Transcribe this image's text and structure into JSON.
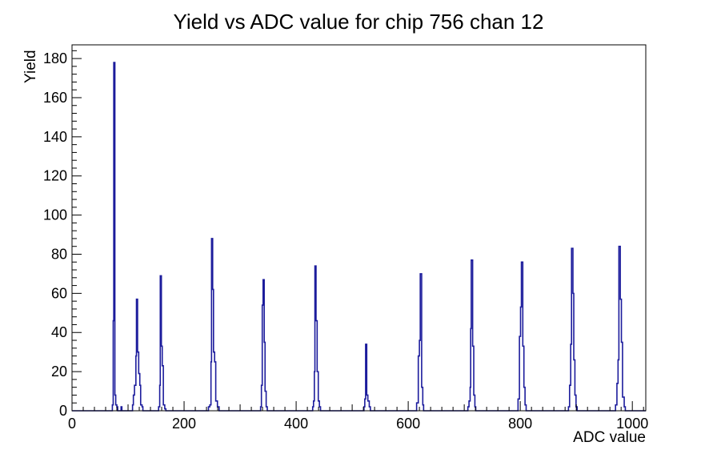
{
  "page": {
    "background": "#ffffff"
  },
  "chart_data": {
    "type": "bar",
    "subtype": "histogram-step-outline",
    "title": "Yield vs ADC value for chip 756 chan 12",
    "xlabel": "ADC value",
    "ylabel": "Yield",
    "xlim": [
      0,
      1024
    ],
    "ylim": [
      0,
      187
    ],
    "grid": false,
    "legend": false,
    "x_major_ticks": [
      0,
      200,
      400,
      600,
      800,
      1000
    ],
    "x_medium_step": 100,
    "x_minor_step": 20,
    "y_major_ticks": [
      0,
      20,
      40,
      60,
      80,
      100,
      120,
      140,
      160,
      180
    ],
    "y_minor_step": 4,
    "line_color": "#1c1c9c",
    "axis_color": "#000000",
    "peaks_summary": [
      {
        "center_adc": 75,
        "max_yield": 178
      },
      {
        "center_adc": 116,
        "max_yield": 57
      },
      {
        "center_adc": 158,
        "max_yield": 69
      },
      {
        "center_adc": 250,
        "max_yield": 88
      },
      {
        "center_adc": 342,
        "max_yield": 67
      },
      {
        "center_adc": 435,
        "max_yield": 74
      },
      {
        "center_adc": 525,
        "max_yield": 34
      },
      {
        "center_adc": 622,
        "max_yield": 70
      },
      {
        "center_adc": 713,
        "max_yield": 77
      },
      {
        "center_adc": 803,
        "max_yield": 76
      },
      {
        "center_adc": 892,
        "max_yield": 83
      },
      {
        "center_adc": 977,
        "max_yield": 84
      }
    ],
    "clusters": [
      {
        "points": [
          [
            70.5,
            0
          ],
          [
            72,
            3
          ],
          [
            73.5,
            46
          ],
          [
            74.5,
            178
          ],
          [
            76.5,
            8
          ],
          [
            78,
            3
          ],
          [
            80,
            2
          ],
          [
            81.5,
            0
          ]
        ]
      },
      {
        "points": [
          [
            86,
            0
          ],
          [
            87.5,
            2
          ],
          [
            89,
            0
          ]
        ]
      },
      {
        "points": [
          [
            106.5,
            0
          ],
          [
            108,
            3
          ],
          [
            109.5,
            8
          ],
          [
            111.5,
            13
          ],
          [
            114,
            28
          ],
          [
            115,
            57
          ],
          [
            117,
            30
          ],
          [
            119,
            19
          ],
          [
            121,
            13
          ],
          [
            122.5,
            3
          ],
          [
            125,
            2
          ],
          [
            126.5,
            0
          ]
        ]
      },
      {
        "points": [
          [
            153,
            0
          ],
          [
            154.5,
            2
          ],
          [
            156.5,
            13
          ],
          [
            157.5,
            69
          ],
          [
            159.5,
            33
          ],
          [
            161,
            23
          ],
          [
            163,
            3
          ],
          [
            165.5,
            1
          ],
          [
            167.5,
            0
          ]
        ]
      },
      {
        "points": [
          [
            242,
            0
          ],
          [
            243.5,
            2
          ],
          [
            246,
            3
          ],
          [
            248,
            25
          ],
          [
            249,
            88
          ],
          [
            251,
            62
          ],
          [
            252.5,
            30
          ],
          [
            254.5,
            25
          ],
          [
            256.5,
            5
          ],
          [
            259.5,
            2
          ],
          [
            262.5,
            0
          ]
        ]
      },
      {
        "points": [
          [
            335,
            0
          ],
          [
            336.5,
            2
          ],
          [
            338,
            13
          ],
          [
            339.5,
            54
          ],
          [
            341,
            67
          ],
          [
            343,
            35
          ],
          [
            344.5,
            10
          ],
          [
            346.5,
            2
          ],
          [
            348.5,
            0
          ]
        ]
      },
      {
        "points": [
          [
            428,
            0
          ],
          [
            429.5,
            2
          ],
          [
            431,
            5
          ],
          [
            432.5,
            20
          ],
          [
            433.5,
            74
          ],
          [
            435.5,
            46
          ],
          [
            437.5,
            20
          ],
          [
            439.5,
            5
          ],
          [
            441.5,
            2
          ],
          [
            443.5,
            0
          ]
        ]
      },
      {
        "points": [
          [
            519,
            0
          ],
          [
            521,
            2
          ],
          [
            522.5,
            6
          ],
          [
            524,
            34
          ],
          [
            526,
            8
          ],
          [
            528,
            5
          ],
          [
            530.5,
            2
          ],
          [
            532.5,
            0
          ]
        ]
      },
      {
        "points": [
          [
            613.5,
            0
          ],
          [
            615,
            4
          ],
          [
            618,
            28
          ],
          [
            620,
            36
          ],
          [
            621.5,
            70
          ],
          [
            624,
            12
          ],
          [
            626,
            3
          ],
          [
            627.5,
            0
          ]
        ]
      },
      {
        "points": [
          [
            705,
            0
          ],
          [
            706.5,
            2
          ],
          [
            708.5,
            5
          ],
          [
            710.5,
            12
          ],
          [
            711.5,
            42
          ],
          [
            712.5,
            77
          ],
          [
            715,
            33
          ],
          [
            717,
            8
          ],
          [
            719,
            2
          ],
          [
            720.5,
            0
          ]
        ]
      },
      {
        "points": [
          [
            794.5,
            0
          ],
          [
            796,
            6
          ],
          [
            798.5,
            38
          ],
          [
            800.5,
            53
          ],
          [
            802,
            76
          ],
          [
            804.5,
            33
          ],
          [
            806.5,
            12
          ],
          [
            808.5,
            3
          ],
          [
            810.5,
            0
          ]
        ]
      },
      {
        "points": [
          [
            884.5,
            0
          ],
          [
            886,
            2
          ],
          [
            888,
            13
          ],
          [
            890,
            34
          ],
          [
            891.5,
            83
          ],
          [
            894,
            60
          ],
          [
            895.5,
            26
          ],
          [
            897.5,
            8
          ],
          [
            899.5,
            2
          ],
          [
            901.5,
            0
          ]
        ]
      },
      {
        "points": [
          [
            968.5,
            0
          ],
          [
            970,
            3
          ],
          [
            972.5,
            14
          ],
          [
            974.5,
            26
          ],
          [
            976,
            84
          ],
          [
            978.5,
            57
          ],
          [
            980.5,
            35
          ],
          [
            982.5,
            7
          ],
          [
            985.5,
            2
          ],
          [
            987.5,
            0
          ]
        ]
      }
    ]
  }
}
